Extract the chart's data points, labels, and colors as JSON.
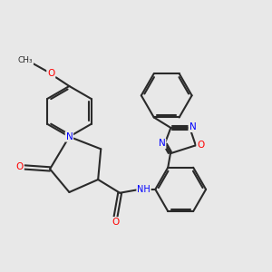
{
  "bg_color": "#e8e8e8",
  "bond_color": "#2a2a2a",
  "bond_width": 1.5,
  "atom_colors": {
    "N": "#0000ff",
    "O": "#ff0000",
    "C": "#2a2a2a"
  },
  "font_size_atom": 7.5,
  "figsize": [
    3.0,
    3.0
  ],
  "dpi": 100
}
